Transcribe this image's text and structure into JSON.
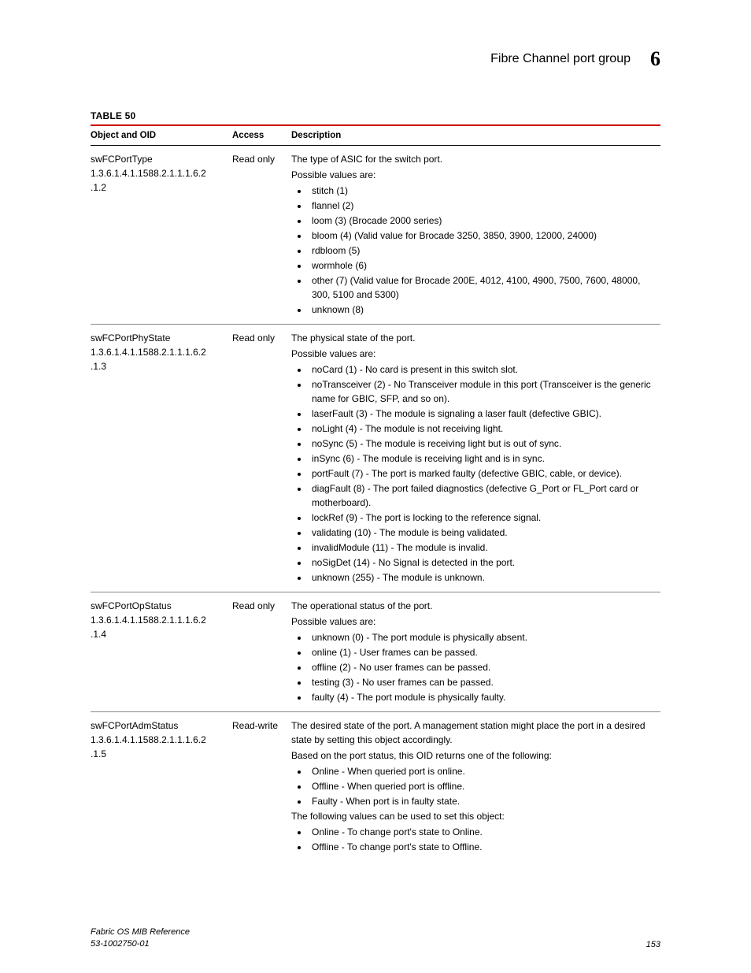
{
  "header": {
    "title": "Fibre Channel port group",
    "chapter": "6"
  },
  "table": {
    "title": "TABLE 50",
    "columns": [
      "Object and OID",
      "Access",
      "Description"
    ],
    "rows": [
      {
        "name": "swFCPortType",
        "oid": "1.3.6.1.4.1.1588.2.1.1.1.6.2.1.2",
        "access": "Read only",
        "intro": [
          "The type of ASIC for the switch port.",
          "Possible values are:"
        ],
        "bullets": [
          "stitch (1)",
          "flannel (2)",
          "loom (3) (Brocade 2000 series)",
          "bloom (4) (Valid value for Brocade 3250, 3850, 3900, 12000, 24000)",
          "rdbloom (5)",
          "wormhole (6)",
          "other (7) (Valid value for Brocade 200E, 4012, 4100, 4900, 7500, 7600, 48000, 300, 5100 and 5300)",
          "unknown (8)"
        ]
      },
      {
        "name": "swFCPortPhyState",
        "oid": "1.3.6.1.4.1.1588.2.1.1.1.6.2.1.3",
        "access": "Read only",
        "intro": [
          "The physical state of the port.",
          "Possible values are:"
        ],
        "bullets": [
          "noCard (1) - No card is present in this switch slot.",
          "noTransceiver (2) - No Transceiver module in this port (Transceiver is the generic name for GBIC, SFP, and so on).",
          "laserFault (3) - The module is signaling a laser fault (defective GBIC).",
          "noLight (4) - The module is not receiving light.",
          "noSync (5) - The module is receiving light but is out of sync.",
          "inSync (6) - The module is receiving light and is in sync.",
          "portFault (7) - The port is marked faulty (defective GBIC, cable, or device).",
          "diagFault (8) - The port failed diagnostics (defective G_Port or FL_Port card or motherboard).",
          "lockRef (9) - The port is locking to the reference signal.",
          "validating (10) - The module is being validated.",
          "invalidModule (11) - The module is invalid.",
          "noSigDet (14) - No Signal is detected in the port.",
          "unknown (255) - The module is unknown."
        ]
      },
      {
        "name": "swFCPortOpStatus",
        "oid": "1.3.6.1.4.1.1588.2.1.1.1.6.2.1.4",
        "access": "Read only",
        "intro": [
          "The operational status of the port.",
          "Possible values are:"
        ],
        "bullets": [
          "unknown (0) - The port module is physically absent.",
          "online (1) - User frames can be passed.",
          "offline (2) - No user frames can be passed.",
          "testing (3) - No user frames can be passed.",
          "faulty (4) - The port module is physically faulty."
        ]
      },
      {
        "name": "swFCPortAdmStatus",
        "oid": "1.3.6.1.4.1.1588.2.1.1.1.6.2.1.5",
        "access": "Read-write",
        "intro": [
          "The desired state of the port. A management station might place the port in a desired state by setting this object accordingly.",
          "Based on the port status, this OID returns one of the following:"
        ],
        "bullets": [
          "Online - When queried port is online.",
          "Offline - When queried port is offline.",
          "Faulty - When port is in faulty state."
        ],
        "intro2": [
          "The following values can be used to set this object:"
        ],
        "bullets2": [
          "Online - To change port's state to Online.",
          "Offline - To change port's state to Offline."
        ]
      }
    ]
  },
  "footer": {
    "doc_title": "Fabric OS MIB Reference",
    "doc_num": "53-1002750-01",
    "page_num": "153"
  }
}
